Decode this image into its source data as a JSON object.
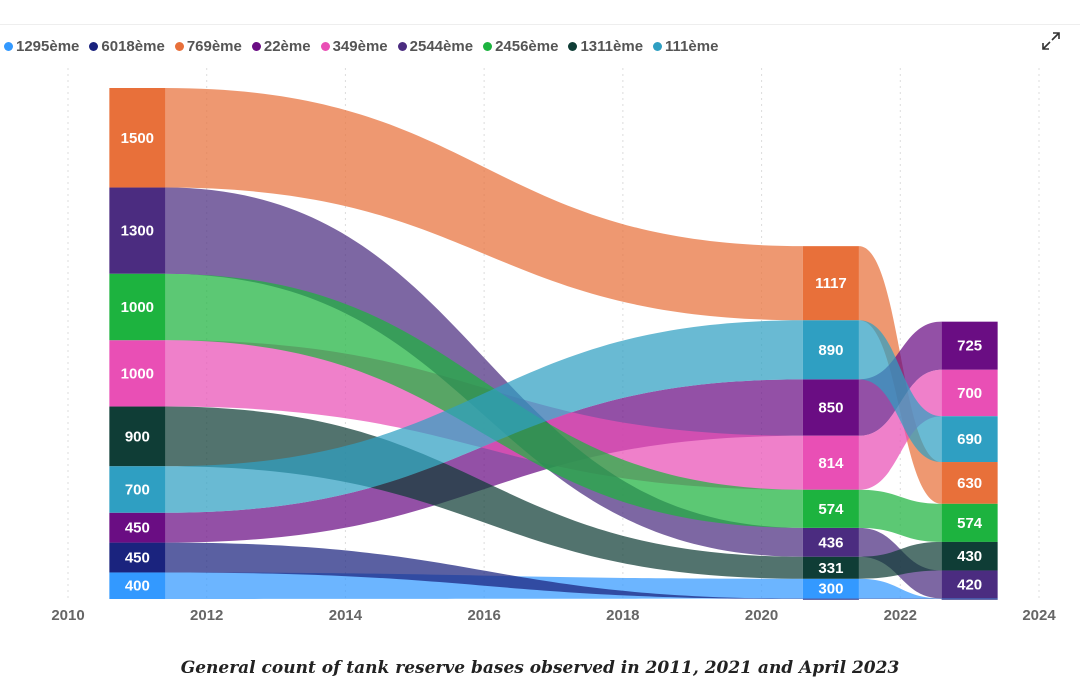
{
  "ui": {
    "expand_icon": "expand-arrows-icon"
  },
  "caption": "General count of tank reserve bases observed in 2011, 2021 and April 2023",
  "chart_data": {
    "type": "sankey-flow",
    "title": "",
    "xlabel": "",
    "ylabel": "",
    "x_ticks": [
      "2010",
      "2012",
      "2014",
      "2016",
      "2018",
      "2020",
      "2022",
      "2024"
    ],
    "x_range": [
      2010,
      2024
    ],
    "grid": "vertical-dotted",
    "legend_position": "top-left",
    "timepoints": [
      2011,
      2021,
      2023
    ],
    "series": [
      {
        "name": "1295ème",
        "color": "#3399ff",
        "values": [
          400,
          300,
          5
        ]
      },
      {
        "name": "6018ème",
        "color": "#1a237e",
        "values": [
          450,
          5,
          5
        ]
      },
      {
        "name": "769ème",
        "color": "#e8703a",
        "values": [
          1500,
          1117,
          630
        ]
      },
      {
        "name": "22ème",
        "color": "#6a0d83",
        "values": [
          450,
          850,
          725
        ]
      },
      {
        "name": "349ème",
        "color": "#e94fb5",
        "values": [
          1000,
          814,
          700
        ]
      },
      {
        "name": "2544ème",
        "color": "#4b2c80",
        "values": [
          1300,
          436,
          420
        ]
      },
      {
        "name": "2456ème",
        "color": "#1db33f",
        "values": [
          1000,
          574,
          574
        ]
      },
      {
        "name": "1311ème",
        "color": "#0f3d36",
        "values": [
          900,
          331,
          430
        ]
      },
      {
        "name": "111ème",
        "color": "#2f9fc2",
        "values": [
          700,
          890,
          690
        ]
      }
    ],
    "stack_order": [
      [
        "769ème",
        "2544ème",
        "2456ème",
        "349ème",
        "1311ème",
        "111ème",
        "22ème",
        "6018ème",
        "1295ème"
      ],
      [
        "769ème",
        "111ème",
        "22ème",
        "349ème",
        "2456ème",
        "2544ème",
        "1311ème",
        "1295ème",
        "6018ème"
      ],
      [
        "22ème",
        "349ème",
        "111ème",
        "769ème",
        "2456ème",
        "1311ème",
        "2544ème",
        "1295ème",
        "6018ème"
      ]
    ]
  }
}
